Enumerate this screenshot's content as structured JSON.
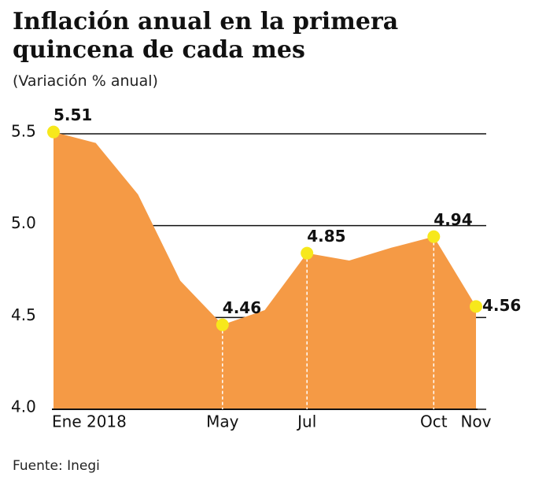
{
  "chart_data": {
    "type": "area",
    "title": "Inflación anual en la primera quincena de cada mes",
    "subtitle": "(Variación % anual)",
    "source": "Fuente: Inegi",
    "categories": [
      "Ene 2018",
      null,
      null,
      null,
      "May",
      null,
      "Jul",
      null,
      null,
      "Oct",
      "Nov"
    ],
    "values": [
      5.51,
      5.45,
      5.17,
      4.7,
      4.46,
      4.54,
      4.85,
      4.81,
      4.88,
      4.94,
      4.56
    ],
    "color": "#f59a45",
    "marker_color": "#f7e81c",
    "ylim": [
      4.0,
      5.5
    ],
    "yticks": [
      {
        "value": 4.0,
        "label": "4.0"
      },
      4.5,
      {
        "value": 5.0,
        "label": "5.0"
      },
      5.5
    ],
    "grid": true
  }
}
